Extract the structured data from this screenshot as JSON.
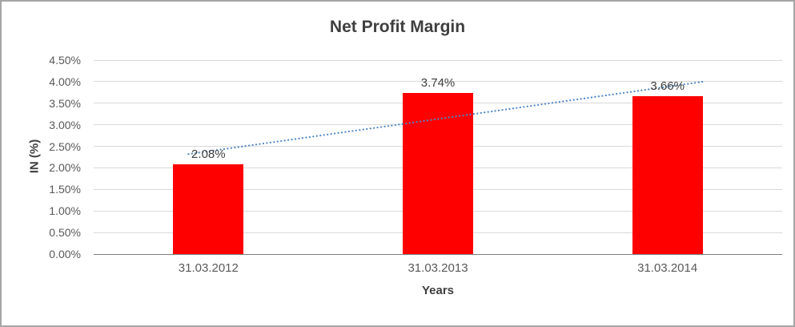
{
  "chart_data": {
    "type": "bar",
    "title": "Net Profit Margin",
    "categories": [
      "31.03.2012",
      "31.03.2013",
      "31.03.2014"
    ],
    "values": [
      2.08,
      3.74,
      3.66
    ],
    "data_labels": [
      "2.08%",
      "3.74%",
      "3.66%"
    ],
    "xlabel": "Years",
    "ylabel": "IN (%)",
    "ylim": [
      0,
      4.5
    ],
    "ytick_step": 0.5,
    "ytick_labels": [
      "0.00%",
      "0.50%",
      "1.00%",
      "1.50%",
      "2.00%",
      "2.50%",
      "3.00%",
      "3.50%",
      "4.00%",
      "4.50%"
    ],
    "grid": true,
    "legend": "none",
    "bar_color": "#ff0000",
    "grid_color": "#d9d9d9",
    "axis_line_color": "#7f7f7f",
    "trendline": {
      "type": "linear",
      "style": "dotted",
      "color": "#4e87c3",
      "start_value": 2.32,
      "end_value": 4.0
    }
  }
}
